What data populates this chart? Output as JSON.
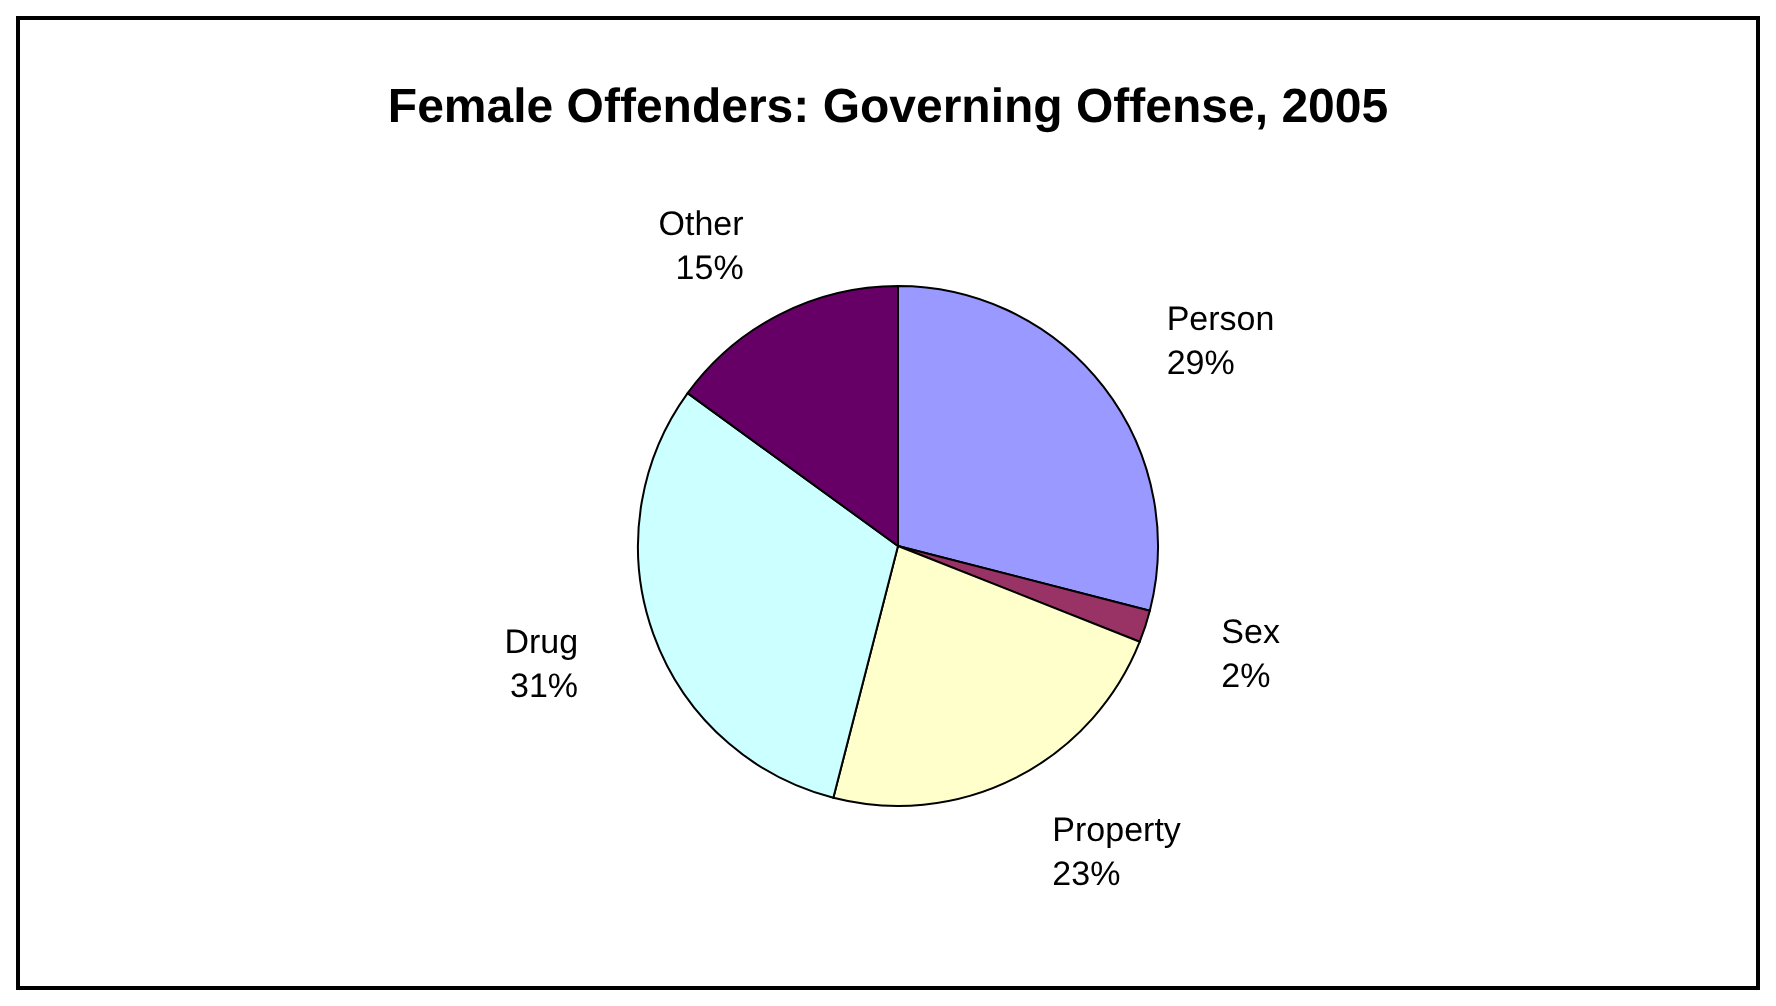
{
  "chart_data": {
    "type": "pie",
    "title": "Female Offenders: Governing Offense, 2005",
    "categories": [
      "Person",
      "Sex",
      "Property",
      "Drug",
      "Other"
    ],
    "values": [
      29,
      2,
      23,
      31,
      15
    ],
    "value_labels": [
      "29%",
      "2%",
      "23%",
      "31%",
      "15%"
    ],
    "colors": [
      "#9999ff",
      "#993366",
      "#ffffcc",
      "#ccffff",
      "#660066"
    ],
    "legend": false
  }
}
